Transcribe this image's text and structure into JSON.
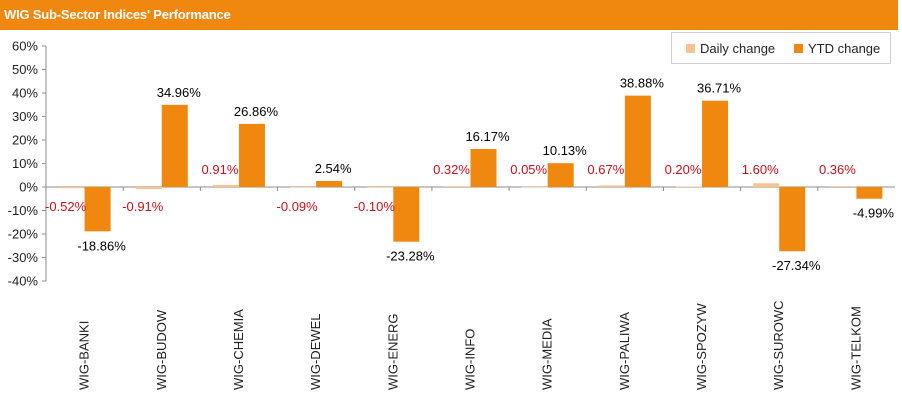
{
  "title": "WIG Sub-Sector Indices' Performance",
  "colors": {
    "title_bar": "#f0870f",
    "daily": "#f9c38f",
    "ytd": "#f0870f",
    "negative_label": "#c0121c",
    "daily_positive_label": "#c0121c",
    "ytd_label": "#000000"
  },
  "chart_data": {
    "type": "bar",
    "title": "WIG Sub-Sector Indices' Performance",
    "categories": [
      "WIG-BANKI",
      "WIG-BUDOW",
      "WIG-CHEMIA",
      "WIG-DEWEL",
      "WIG-ENERG",
      "WIG-INFO",
      "WIG-MEDIA",
      "WIG-PALIWA",
      "WIG-SPOZYW",
      "WIG-SUROWC",
      "WIG-TELKOM"
    ],
    "series": [
      {
        "name": "Daily change",
        "values": [
          -0.52,
          -0.91,
          0.91,
          -0.09,
          -0.1,
          0.32,
          0.05,
          0.67,
          0.2,
          1.6,
          0.36
        ],
        "labels": [
          "-0.52%",
          "-0.91%",
          "0.91%",
          "-0.09%",
          "-0.10%",
          "0.32%",
          "0.05%",
          "0.67%",
          "0.20%",
          "1.60%",
          "0.36%"
        ]
      },
      {
        "name": "YTD change",
        "values": [
          -18.86,
          34.96,
          26.86,
          2.54,
          -23.28,
          16.17,
          10.13,
          38.88,
          36.71,
          -27.34,
          -4.99
        ],
        "labels": [
          "-18.86%",
          "34.96%",
          "26.86%",
          "2.54%",
          "-23.28%",
          "16.17%",
          "10.13%",
          "38.88%",
          "36.71%",
          "-27.34%",
          "-4.99%"
        ]
      }
    ],
    "ylim": [
      -40,
      60
    ],
    "yticks": [
      -40,
      -30,
      -20,
      -10,
      0,
      10,
      20,
      30,
      40,
      50,
      60
    ],
    "ytick_labels": [
      "-40%",
      "-30%",
      "-20%",
      "-10%",
      "0%",
      "10%",
      "20%",
      "30%",
      "40%",
      "50%",
      "60%"
    ],
    "legend_position": "top-right",
    "grid": false
  }
}
